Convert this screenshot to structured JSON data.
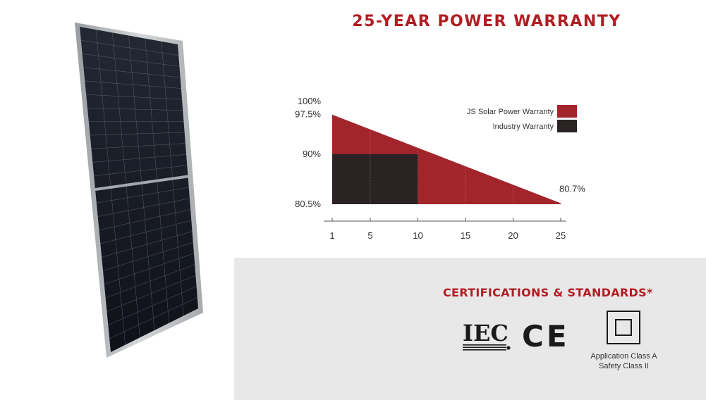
{
  "warranty_title": "25-YEAR POWER WARRANTY",
  "colors": {
    "brand_red": "#b01e23",
    "js_area": "#a3252c",
    "industry_area": "#2b2223",
    "cert_background": "#e8e8e8"
  },
  "chart_data": {
    "type": "area",
    "title": "",
    "xlabel": "",
    "ylabel": "",
    "xlim": [
      1,
      25
    ],
    "ylim": [
      80.5,
      100
    ],
    "x_ticks": [
      "1",
      "5",
      "10",
      "15",
      "20",
      "25"
    ],
    "x_tick_values": [
      1,
      5,
      10,
      15,
      20,
      25
    ],
    "y_ticks": [
      "100%",
      "97.5%",
      "90%",
      "80.5%"
    ],
    "y_tick_values": [
      100,
      97.5,
      90,
      80.5
    ],
    "series": [
      {
        "name": "JS Solar Power Warranty",
        "color": "#a3252c",
        "x": [
          1,
          25
        ],
        "y": [
          97.5,
          80.7
        ]
      },
      {
        "name": "Industry Warranty",
        "color": "#2b2223",
        "x": [
          1,
          10,
          10,
          25
        ],
        "y": [
          90,
          90,
          80.5,
          80.5
        ]
      }
    ],
    "annotations": [
      {
        "text": "80.7%",
        "x": 25,
        "y": 80.7
      }
    ],
    "legend_position": "top-right",
    "grid": false
  },
  "certifications": {
    "title": "CERTIFICATIONS & STANDARDS*",
    "logos": [
      {
        "name": "iec-logo",
        "text": "IEC"
      },
      {
        "name": "ce-logo",
        "text": "CE"
      },
      {
        "name": "class-ii-icon"
      }
    ],
    "class_a": "Application Class A",
    "class_ii": "Safety Class II"
  }
}
